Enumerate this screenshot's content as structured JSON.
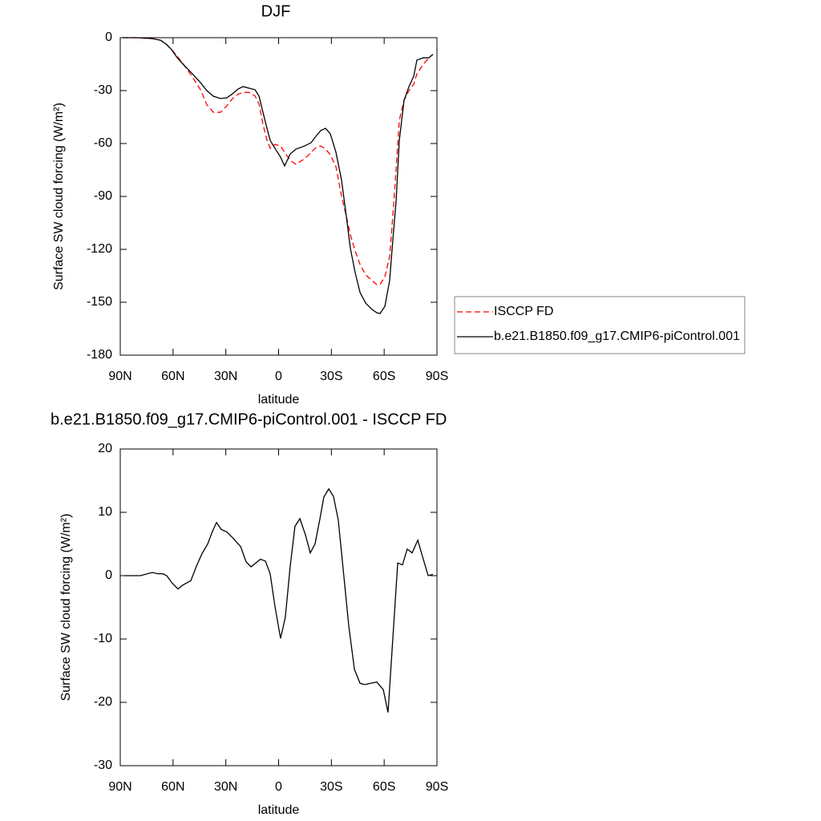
{
  "chart_data": [
    {
      "type": "line",
      "title": "DJF",
      "xlabel": "latitude",
      "ylabel": "Surface SW cloud forcing (W/m²)",
      "xlim": [
        90,
        -90
      ],
      "xticks": [
        {
          "value": 90,
          "label": "90N"
        },
        {
          "value": 60,
          "label": "60N"
        },
        {
          "value": 30,
          "label": "30N"
        },
        0,
        {
          "value": -30,
          "label": "30S"
        },
        {
          "value": -60,
          "label": "60S"
        },
        {
          "value": -90,
          "label": "90S"
        }
      ],
      "ylim": [
        -180,
        0
      ],
      "yticks": [
        0,
        -30,
        -60,
        -90,
        -120,
        -150,
        -180
      ],
      "legend": "right",
      "x": [
        88.6,
        80.9,
        71.8,
        67.2,
        64,
        60.8,
        57.6,
        53.5,
        49,
        44.4,
        40.8,
        37.1,
        33,
        29.4,
        26.2,
        23,
        20.2,
        17,
        13.4,
        11.1,
        8.9,
        6.6,
        4.8,
        2.1,
        -1.1,
        -3.4,
        -6.6,
        -9.8,
        -14.8,
        -18.5,
        -21.2,
        -23.9,
        -26.7,
        -29.4,
        -32.6,
        -35.8,
        -38.5,
        -40.8,
        -43.5,
        -46.3,
        -49.5,
        -53.1,
        -55.8,
        -57.6,
        -60.4,
        -63.1,
        -64.9,
        -66.8,
        -68.6,
        -71.3,
        -74.1,
        -76.8,
        -78.6,
        -82.3,
        -85.4,
        -87.7
      ],
      "series": [
        {
          "name": "ISCCP FD",
          "color": "#ff0000",
          "line_style": "dashed",
          "values": [
            0,
            0,
            -0.5,
            -1.4,
            -3.6,
            -6.8,
            -10.5,
            -15.9,
            -22.3,
            -29.5,
            -38,
            -42.3,
            -42.3,
            -38.6,
            -34.5,
            -32,
            -31,
            -31,
            -33,
            -37.7,
            -49.1,
            -58.2,
            -62.7,
            -60.5,
            -61.4,
            -65,
            -69.5,
            -71.8,
            -68.6,
            -65,
            -62.3,
            -61.4,
            -63.2,
            -66.4,
            -73.2,
            -90,
            -101.4,
            -111.8,
            -120.9,
            -128.6,
            -134.5,
            -137.7,
            -140,
            -140,
            -135.5,
            -124.1,
            -101.4,
            -74.1,
            -46.8,
            -35.5,
            -30,
            -26.4,
            -20.5,
            -15,
            -11.4,
            -9.5
          ]
        },
        {
          "name": "b.e21.B1850.f09_g17.CMIP6-piControl.001",
          "color": "#000000",
          "line_style": "solid",
          "values": [
            0,
            0,
            -0.5,
            -1.4,
            -3.6,
            -6.8,
            -11.4,
            -15.9,
            -20.5,
            -25.5,
            -30,
            -33.2,
            -34.5,
            -34.1,
            -31.8,
            -29.1,
            -27.7,
            -28.6,
            -29.5,
            -33.2,
            -42.3,
            -51.4,
            -58.2,
            -62.7,
            -67.7,
            -72.7,
            -65.9,
            -63.2,
            -61.4,
            -59.5,
            -55.9,
            -52.7,
            -51.4,
            -54.5,
            -65,
            -80.9,
            -101.4,
            -119.5,
            -133.2,
            -144.5,
            -150.5,
            -154.1,
            -155.9,
            -156.4,
            -152.3,
            -137.7,
            -115,
            -92.3,
            -58.2,
            -35.5,
            -27.7,
            -21.8,
            -12.7,
            -11.4,
            -11.4,
            -9.5
          ]
        }
      ]
    },
    {
      "type": "line",
      "title": "b.e21.B1850.f09_g17.CMIP6-piControl.001 - ISCCP FD",
      "xlabel": "latitude",
      "ylabel": "Surface SW cloud forcing (W/m²)",
      "xlim": [
        90,
        -90
      ],
      "xticks": [
        {
          "value": 90,
          "label": "90N"
        },
        {
          "value": 60,
          "label": "60N"
        },
        {
          "value": 30,
          "label": "30N"
        },
        0,
        {
          "value": -30,
          "label": "30S"
        },
        {
          "value": -60,
          "label": "60S"
        },
        {
          "value": -90,
          "label": "90S"
        }
      ],
      "ylim": [
        -30,
        20
      ],
      "yticks": [
        20,
        10,
        0,
        -10,
        -20,
        -30
      ],
      "x": [
        87.7,
        78.6,
        71.8,
        68.6,
        65.8,
        63.6,
        60.4,
        57.2,
        54.5,
        49.9,
        46.7,
        43.5,
        40.3,
        37.6,
        35.3,
        32.6,
        29.4,
        26.2,
        21.6,
        18.5,
        15.7,
        13,
        10.3,
        7.5,
        4.8,
        2.1,
        -1.1,
        -3.8,
        -6.6,
        -9.3,
        -12.1,
        -15.3,
        -18,
        -20.7,
        -23.5,
        -25.7,
        -28.5,
        -31.2,
        -33.9,
        -36.7,
        -39.9,
        -43.1,
        -46.3,
        -49,
        -52.2,
        -55.8,
        -59.5,
        -62.2,
        -64.9,
        -67.7,
        -70.4,
        -73.1,
        -75.9,
        -79.1,
        -81.8,
        -85,
        -87.7
      ],
      "series": [
        {
          "color": "#000000",
          "line_style": "solid",
          "values": [
            0,
            0,
            0.5,
            0.3,
            0.3,
            0,
            -1.2,
            -2.1,
            -1.5,
            -0.8,
            1.5,
            3.5,
            5,
            7,
            8.4,
            7.3,
            6.9,
            6,
            4.6,
            2.2,
            1.4,
            2,
            2.6,
            2.3,
            0.3,
            -4.8,
            -9.9,
            -6.6,
            1.5,
            7.8,
            9,
            6.4,
            3.6,
            5,
            9,
            12.4,
            13.7,
            12.5,
            8.8,
            1,
            -8,
            -14.8,
            -17,
            -17.2,
            -17,
            -16.8,
            -18,
            -21.6,
            -10,
            2,
            1.7,
            4.2,
            3.6,
            5.6,
            3,
            0,
            0.2
          ]
        }
      ]
    }
  ]
}
